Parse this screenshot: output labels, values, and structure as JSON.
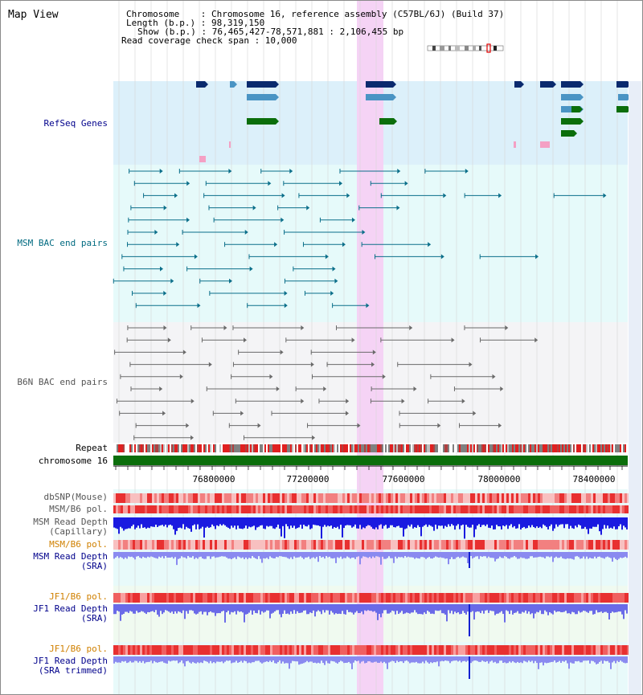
{
  "title": "Map View",
  "info": {
    "chromosome": "Chromosome    : Chromosome 16, reference assembly (C57BL/6J) (Build 37)",
    "length": "Length (b.p.) : 98,319,150",
    "show": "Show (b.p.) : 76,465,427-78,571,881 : 2,106,455 bp",
    "coverage": "Read coverage check span : 10,000"
  },
  "tracks": {
    "refseq": "RefSeq Genes",
    "msm_bac": "MSM BAC end pairs",
    "b6n_bac": "B6N BAC end pairs",
    "repeat": "Repeat",
    "chromosome": "chromosome 16",
    "dbsnp": "dbSNP(Mouse)",
    "msm_b6_pol_1": "MSM/B6 pol.",
    "msm_read_cap_1": "MSM Read Depth",
    "msm_read_cap_2": "(Capillary)",
    "msm_b6_pol_2": "MSM/B6 pol.",
    "msm_read_sra_1": "MSM Read Depth",
    "msm_read_sra_2": "(SRA)",
    "jf1_pol_1": "JF1/B6 pol.",
    "jf1_read_sra_1": "JF1 Read Depth",
    "jf1_read_sra_2": "(SRA)",
    "jf1_pol_2": "JF1/B6 pol.",
    "jf1_read_trim_1": "JF1 Read Depth",
    "jf1_read_trim_2": "(SRA trimmed)"
  },
  "axis": {
    "ticks": [
      "76800000",
      "77200000",
      "77600000",
      "78000000",
      "78400000"
    ]
  },
  "colors": {
    "refseq_bg": "#dcf0fa",
    "bac_bg": "#e6fafa",
    "b6n_bg": "#f4f4f6",
    "highlight": "#f5d3f5",
    "gene_dark": "#0a2a6e",
    "gene_mid": "#4a94c4",
    "gene_green": "#0b6e0b",
    "chrom": "#0b6e0b"
  }
}
